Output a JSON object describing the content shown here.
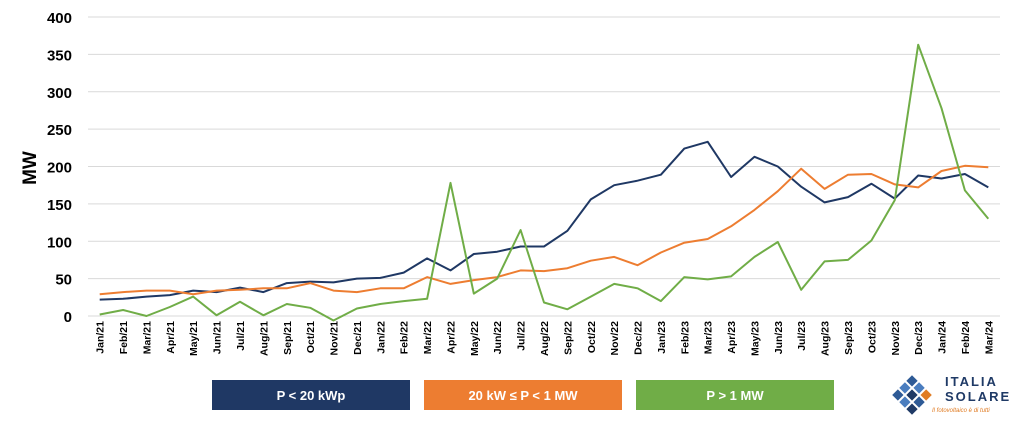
{
  "chart_data": {
    "type": "line",
    "title": "",
    "xlabel": "",
    "ylabel": "MW",
    "ylim": [
      0,
      400
    ],
    "yticks": [
      0,
      50,
      100,
      150,
      200,
      250,
      300,
      350,
      400
    ],
    "grid": true,
    "legend_position": "bottom",
    "categories": [
      "Jan/21",
      "Feb/21",
      "Mar/21",
      "Apr/21",
      "May/21",
      "Jun/21",
      "Jul/21",
      "Aug/21",
      "Sep/21",
      "Oct/21",
      "Nov/21",
      "Dec/21",
      "Jan/22",
      "Feb/22",
      "Mar/22",
      "Apr/22",
      "May/22",
      "Jun/22",
      "Jul/22",
      "Aug/22",
      "Sep/22",
      "Oct/22",
      "Nov/22",
      "Dec/22",
      "Jan/23",
      "Feb/23",
      "Mar/23",
      "Apr/23",
      "May/23",
      "Jun/23",
      "Jul/23",
      "Aug/23",
      "Sep/23",
      "Oct/23",
      "Nov/23",
      "Dec/23",
      "Jan/24",
      "Feb/24",
      "Mar/24"
    ],
    "series": [
      {
        "name": "P < 20 kWp",
        "color": "#1f3864",
        "values": [
          22,
          23,
          26,
          28,
          34,
          32,
          38,
          32,
          44,
          46,
          45,
          50,
          51,
          58,
          77,
          61,
          83,
          86,
          93,
          93,
          114,
          156,
          175,
          181,
          189,
          224,
          233,
          186,
          213,
          200,
          173,
          152,
          159,
          177,
          157,
          188,
          184,
          190,
          172
        ]
      },
      {
        "name": "20 kW ≤ P < 1 MW",
        "color": "#ed7d31",
        "values": [
          29,
          32,
          34,
          34,
          29,
          34,
          35,
          37,
          37,
          44,
          34,
          32,
          37,
          37,
          52,
          43,
          48,
          52,
          61,
          60,
          64,
          74,
          79,
          68,
          85,
          98,
          103,
          120,
          142,
          167,
          197,
          170,
          189,
          190,
          176,
          172,
          194,
          201,
          199
        ]
      },
      {
        "name": "P > 1 MW",
        "color": "#70ad47",
        "values": [
          2,
          8,
          0,
          12,
          26,
          1,
          19,
          1,
          16,
          11,
          -6,
          10,
          16,
          20,
          23,
          178,
          30,
          50,
          115,
          18,
          9,
          26,
          43,
          37,
          20,
          52,
          49,
          53,
          79,
          99,
          35,
          73,
          75,
          101,
          155,
          363,
          278,
          168,
          130
        ]
      }
    ]
  },
  "logo": {
    "word1": "ITALIA",
    "word2": "SOLARE",
    "tagline": "Il fotovoltaico è di tutti"
  }
}
